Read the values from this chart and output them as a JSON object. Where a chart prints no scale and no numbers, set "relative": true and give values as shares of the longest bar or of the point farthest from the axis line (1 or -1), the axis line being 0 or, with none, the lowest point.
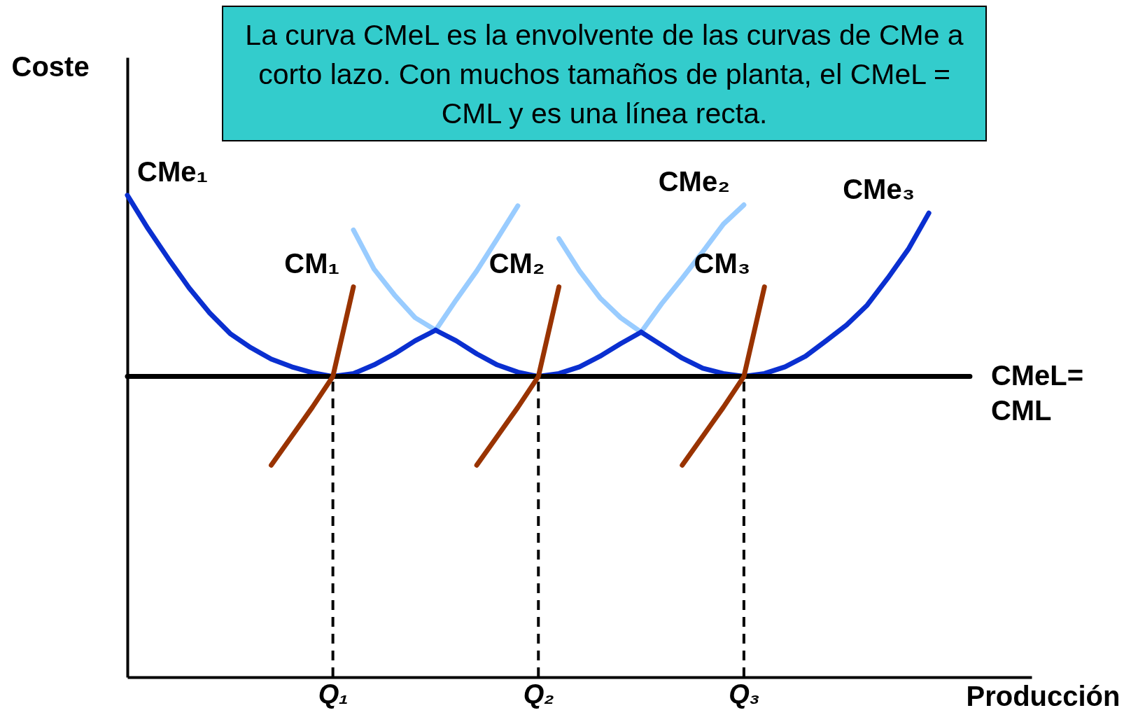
{
  "chart_data": {
    "type": "line",
    "relative": true,
    "title": "La curva CMeL es la envolvente de las curvas de CMe a corto lazo. Con muchos tamaños de planta, el CMeL = CML y es una línea recta.",
    "xlabel": "Producción",
    "ylabel": "Coste",
    "categories": [
      null,
      null,
      null,
      null,
      null,
      null,
      null,
      null,
      null,
      null,
      "Q₁",
      null,
      null,
      null,
      null,
      null,
      null,
      null,
      null,
      null,
      "Q₂",
      null,
      null,
      null,
      null,
      null,
      null,
      null,
      null,
      null,
      "Q₃",
      null,
      null,
      null,
      null,
      null,
      null,
      null,
      null,
      null,
      null,
      null,
      null,
      null,
      null
    ],
    "series": [
      {
        "color": "#99ccff",
        "values": [
          null,
          null,
          null,
          null,
          null,
          null,
          null,
          null,
          null,
          null,
          null,
          null,
          null,
          null,
          null,
          0.72,
          0.783,
          0.843,
          0.91,
          0.978,
          null,
          null,
          null,
          null,
          null,
          null,
          null,
          null,
          null,
          null,
          null,
          null,
          null,
          null,
          null,
          null,
          null,
          null,
          null,
          null,
          null,
          null,
          null,
          null,
          null
        ]
      },
      {
        "color": "#99ccff",
        "values": [
          null,
          null,
          null,
          null,
          null,
          null,
          null,
          null,
          null,
          null,
          null,
          0.928,
          0.847,
          0.793,
          0.746,
          0.72,
          null,
          null,
          null,
          null,
          null,
          null,
          null,
          null,
          null,
          null,
          null,
          null,
          null,
          null,
          null,
          null,
          null,
          null,
          null,
          null,
          null,
          null,
          null,
          null,
          null,
          null,
          null,
          null,
          null
        ]
      },
      {
        "name": "CMe₂",
        "color": "#99ccff",
        "values": [
          null,
          null,
          null,
          null,
          null,
          null,
          null,
          null,
          null,
          null,
          null,
          null,
          null,
          null,
          null,
          null,
          null,
          null,
          null,
          null,
          null,
          null,
          null,
          null,
          null,
          0.716,
          0.775,
          0.828,
          0.883,
          0.94,
          0.98,
          null,
          null,
          null,
          null,
          null,
          null,
          null,
          null,
          null,
          null,
          null,
          null,
          null,
          null
        ]
      },
      {
        "color": "#99ccff",
        "values": [
          null,
          null,
          null,
          null,
          null,
          null,
          null,
          null,
          null,
          null,
          null,
          null,
          null,
          null,
          null,
          null,
          null,
          null,
          null,
          null,
          null,
          0.91,
          0.843,
          0.787,
          0.746,
          0.716,
          null,
          null,
          null,
          null,
          null,
          null,
          null,
          null,
          null,
          null,
          null,
          null,
          null,
          null,
          null,
          null,
          null,
          null,
          null
        ]
      },
      {
        "name": "CMe₁",
        "color": "#0a2fd0",
        "values": [
          1,
          0.931,
          0.868,
          0.808,
          0.756,
          0.713,
          0.684,
          0.66,
          0.644,
          0.632,
          0.624,
          0.63,
          0.648,
          0.671,
          0.698,
          0.72,
          null,
          null,
          null,
          null,
          null,
          null,
          null,
          null,
          null,
          null,
          null,
          null,
          null,
          null,
          null,
          null,
          null,
          null,
          null,
          null,
          null,
          null,
          null,
          null,
          null,
          null,
          null,
          null,
          null
        ]
      },
      {
        "color": "#0a2fd0",
        "values": [
          null,
          null,
          null,
          null,
          null,
          null,
          null,
          null,
          null,
          null,
          null,
          null,
          null,
          null,
          null,
          0.72,
          0.698,
          0.671,
          0.648,
          0.633,
          0.624,
          0.63,
          0.644,
          0.666,
          0.692,
          0.716,
          null,
          null,
          null,
          null,
          null,
          null,
          null,
          null,
          null,
          null,
          null,
          null,
          null,
          null,
          null,
          null,
          null,
          null,
          null
        ]
      },
      {
        "name": "CMe₃",
        "color": "#0a2fd0",
        "values": [
          null,
          null,
          null,
          null,
          null,
          null,
          null,
          null,
          null,
          null,
          null,
          null,
          null,
          null,
          null,
          null,
          null,
          null,
          null,
          null,
          null,
          null,
          null,
          null,
          null,
          0.716,
          0.689,
          0.662,
          0.641,
          0.63,
          0.624,
          0.63,
          0.644,
          0.666,
          0.698,
          0.731,
          0.772,
          0.828,
          0.888,
          0.963,
          null,
          null,
          null,
          null,
          null
        ]
      },
      {
        "name": "CMeL= CML",
        "color": "#000000",
        "values": [
          0.624,
          0.624,
          0.624,
          0.624,
          0.624,
          0.624,
          0.624,
          0.624,
          0.624,
          0.624,
          0.624,
          0.624,
          0.624,
          0.624,
          0.624,
          0.624,
          0.624,
          0.624,
          0.624,
          0.624,
          0.624,
          0.624,
          0.624,
          0.624,
          0.624,
          0.624,
          0.624,
          0.624,
          0.624,
          0.624,
          0.624,
          0.624,
          0.624,
          0.624,
          0.624,
          0.624,
          0.624,
          0.624,
          0.624,
          0.624,
          0.624,
          0.624,
          null,
          null,
          null
        ]
      },
      {
        "color": "#000000",
        "line_style": "dashed",
        "x": [
          "Q₁",
          "Q₁"
        ],
        "values": [
          0,
          0.624
        ]
      },
      {
        "color": "#000000",
        "line_style": "dashed",
        "x": [
          "Q₂",
          "Q₂"
        ],
        "values": [
          0,
          0.624
        ]
      },
      {
        "color": "#000000",
        "line_style": "dashed",
        "x": [
          "Q₃",
          "Q₃"
        ],
        "values": [
          0,
          0.624
        ]
      },
      {
        "name": "CM₁",
        "color": "#993300",
        "values": [
          null,
          null,
          null,
          null,
          null,
          null,
          null,
          0.44,
          0.5,
          0.56,
          0.624,
          0.81,
          null,
          null,
          null,
          null,
          null,
          null,
          null,
          null,
          null,
          null,
          null,
          null,
          null,
          null,
          null,
          null,
          null,
          null,
          null,
          null,
          null,
          null,
          null,
          null,
          null,
          null,
          null,
          null,
          null,
          null,
          null,
          null,
          null
        ]
      },
      {
        "name": "CM₂",
        "color": "#993300",
        "values": [
          null,
          null,
          null,
          null,
          null,
          null,
          null,
          null,
          null,
          null,
          null,
          null,
          null,
          null,
          null,
          null,
          null,
          0.44,
          0.5,
          0.56,
          0.624,
          0.81,
          null,
          null,
          null,
          null,
          null,
          null,
          null,
          null,
          null,
          null,
          null,
          null,
          null,
          null,
          null,
          null,
          null,
          null,
          null,
          null,
          null,
          null,
          null
        ]
      },
      {
        "name": "CM₃",
        "color": "#993300",
        "values": [
          null,
          null,
          null,
          null,
          null,
          null,
          null,
          null,
          null,
          null,
          null,
          null,
          null,
          null,
          null,
          null,
          null,
          null,
          null,
          null,
          null,
          null,
          null,
          null,
          null,
          null,
          null,
          0.44,
          0.5,
          0.56,
          0.624,
          0.81,
          null,
          null,
          null,
          null,
          null,
          null,
          null,
          null,
          null,
          null,
          null,
          null,
          null
        ]
      }
    ]
  }
}
